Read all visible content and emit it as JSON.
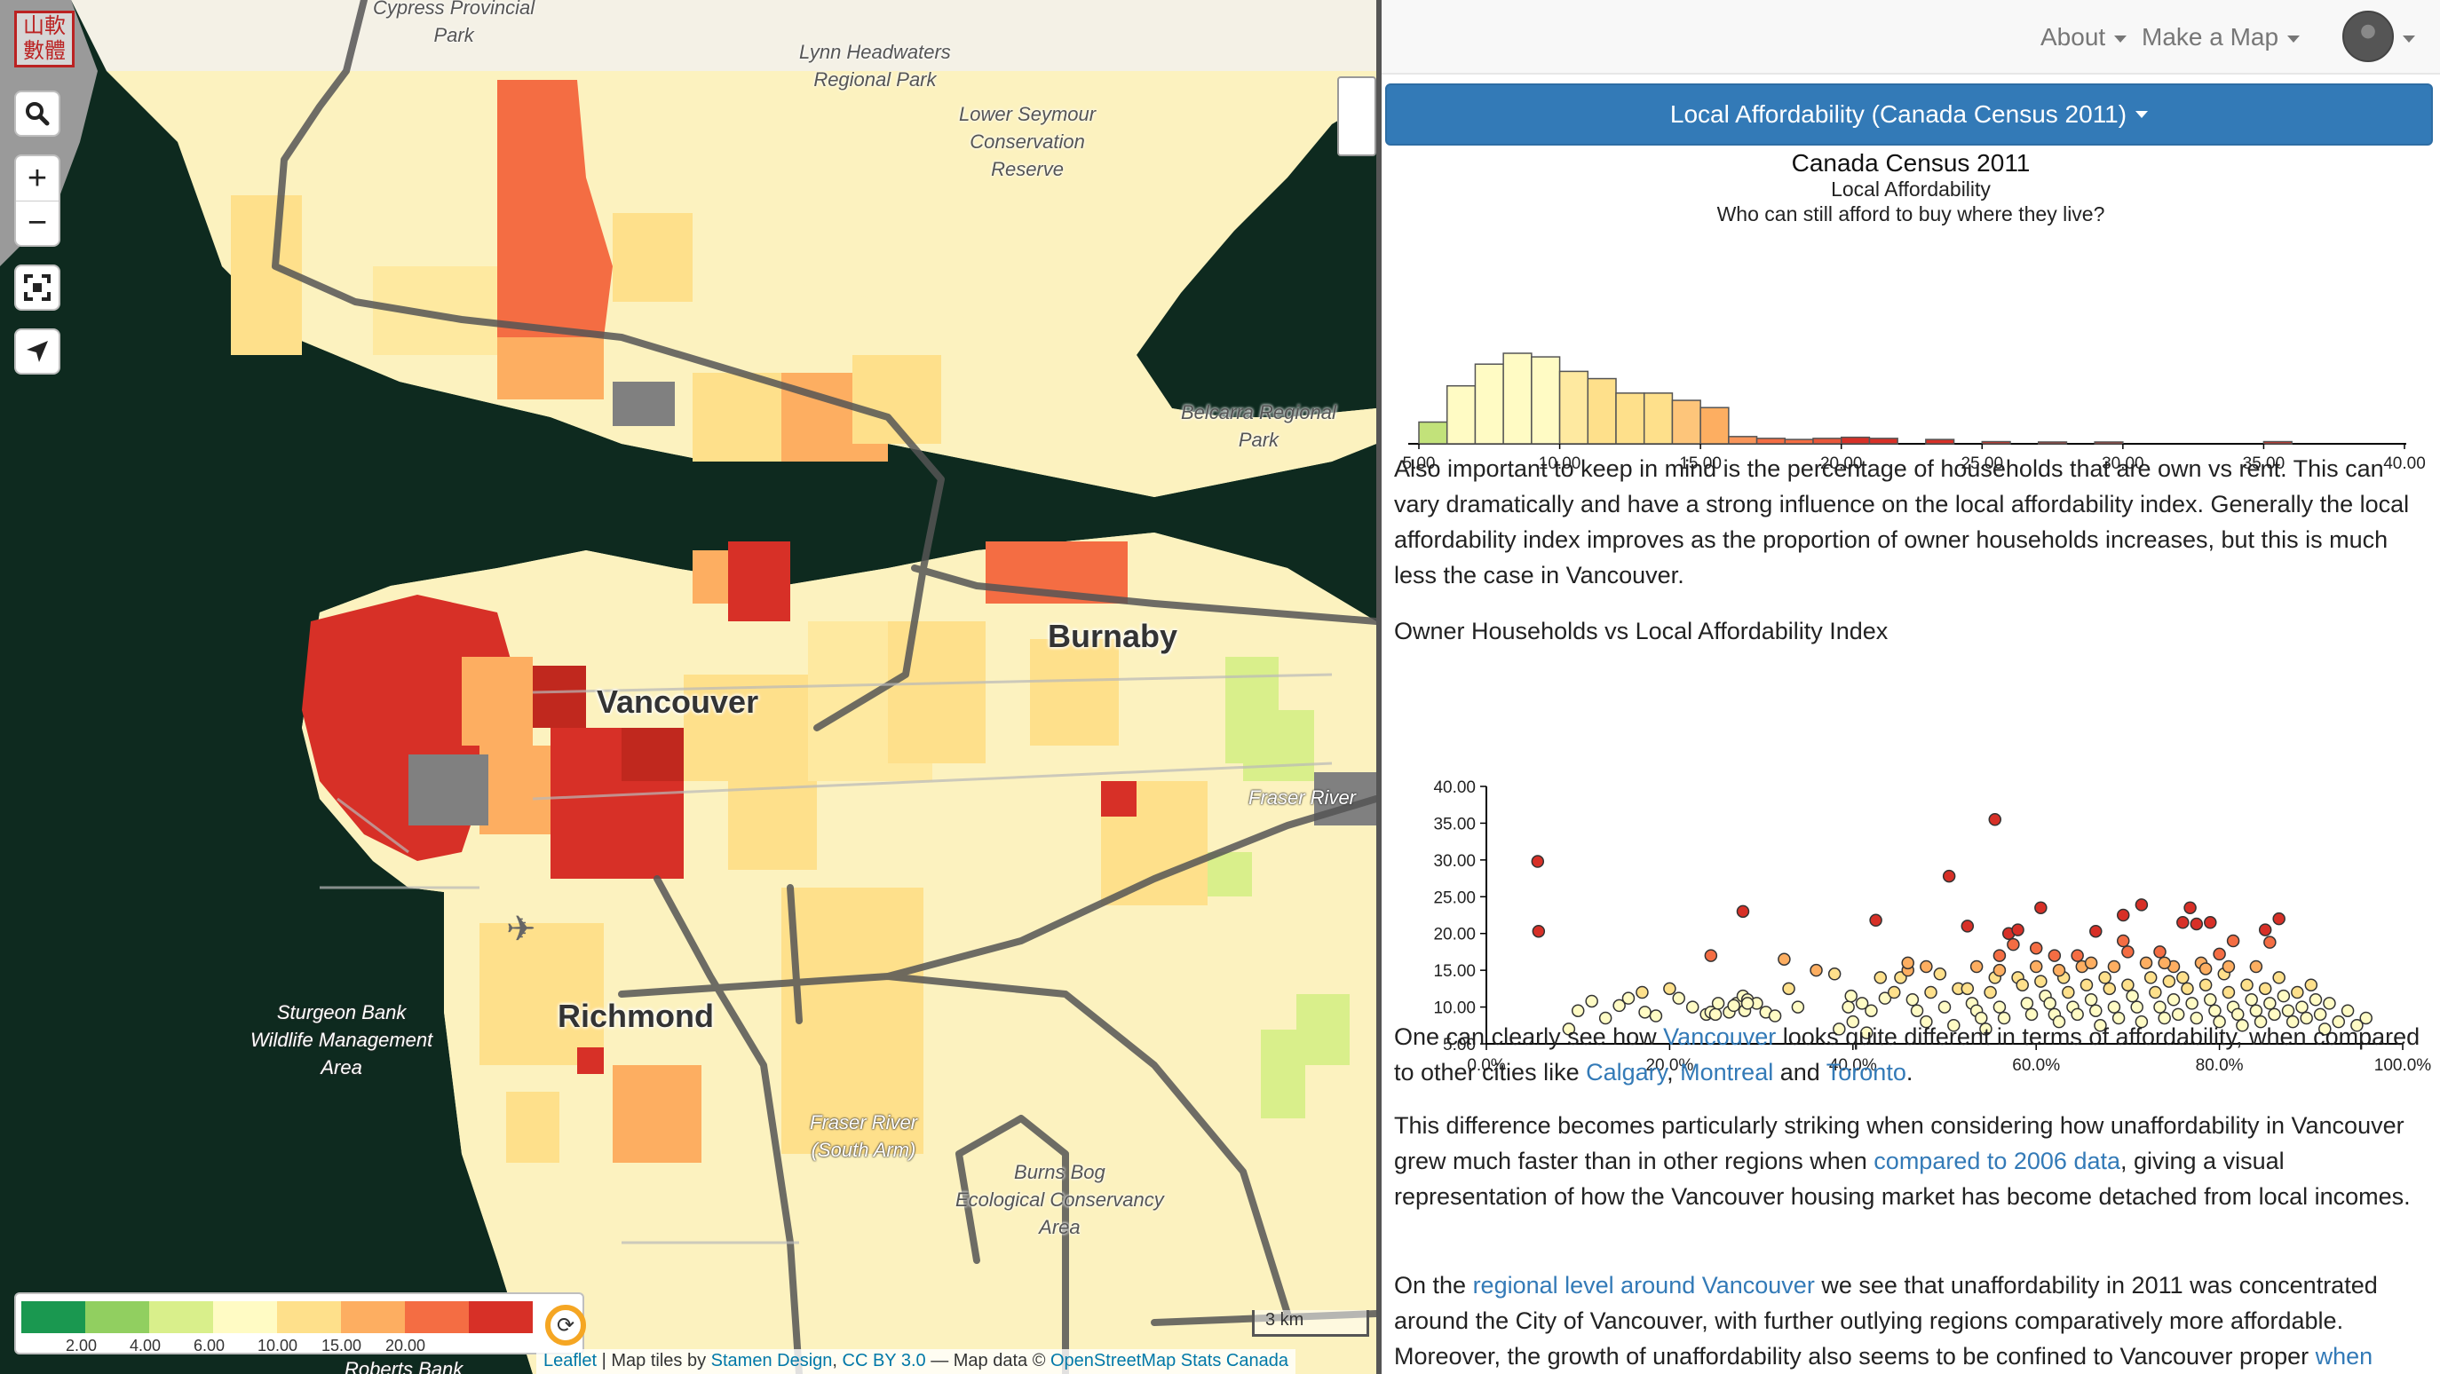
{
  "map": {
    "logo_text": "山軟數體",
    "labels": {
      "cypress": "Cypress Provincial\nPark",
      "lynn": "Lynn Headwaters\nRegional Park",
      "seymour": "Lower Seymour\nConservation\nReserve",
      "belcarra": "Belcarra Regional\nPark",
      "vancouver": "Vancouver",
      "burnaby": "Burnaby",
      "richmond": "Richmond",
      "fraser": "Fraser River",
      "fraser_south": "Fraser River\n(South Arm)",
      "burns_bog": "Burns Bog\nEcological Conservancy\nArea",
      "sturgeon": "Sturgeon Bank\nWildlife Management\nArea",
      "roberts": "Roberts Bank"
    },
    "controls": {
      "search_icon": "search-icon",
      "zoom_in": "+",
      "zoom_out": "−",
      "fullscreen_icon": "fullscreen-icon",
      "locate_icon": "locate-arrow-icon"
    },
    "legend": {
      "colors": [
        "#1a9850",
        "#91cf60",
        "#d9ef8b",
        "#fffbc4",
        "#fee08b",
        "#fdae61",
        "#f46d43",
        "#d73027"
      ],
      "ticks": [
        "2.00",
        "4.00",
        "6.00",
        "10.00",
        "15.00",
        "20.00"
      ],
      "refresh_icon": "refresh-icon"
    },
    "scale_label": "3 km",
    "attribution": {
      "leaflet": "Leaflet",
      "tiles_prefix": " | Map tiles by ",
      "stamen": "Stamen Design",
      "comma": ", ",
      "license": "CC BY 3.0",
      "data_prefix": " — Map data © ",
      "osm": "OpenStreetMap",
      "space": " ",
      "statscan": "Stats Canada"
    }
  },
  "navbar": {
    "about": "About",
    "make_map": "Make a Map",
    "avatar_icon": "user-avatar-icon"
  },
  "panel": {
    "layer_select": "Local Affordability (Canada Census 2011)",
    "chart_title": "Canada Census 2011",
    "chart_subtitle": "Local Affordability",
    "chart_question": "Who can still afford to buy where they live?",
    "para1": "Also important to keep in mind is the percentage of households that are own vs rent. This can vary dramatically and have a strong influence on the local affordability index. Generally the local affordability index improves as the proportion of owner households increases, but this is much less the case in Vancouver.",
    "scatter_title": "Owner Households vs Local Affordability Index",
    "para2": {
      "t1": "One can clearly see how ",
      "l1": "Vancouver",
      "t2": " looks quite different in terms of affordability, when compared to other cities like ",
      "l2": "Calgary",
      "t3": ", ",
      "l3": "Montreal",
      "t4": " and ",
      "l4": "Toronto",
      "t5": "."
    },
    "para3": {
      "t1": "This difference becomes particularly striking when considering how unaffordability in Vancouver grew much faster than in other regions when ",
      "l1": "compared to 2006 data",
      "t2": ", giving a visual representation of how the Vancouver housing market has become detached from local incomes."
    },
    "para4": {
      "t1": "On the ",
      "l1": "regional level around Vancouver",
      "t2": " we see that unaffordability in 2011 was concentrated around the City of Vancouver, with further outlying regions comparatively more affordable. Moreover, the growth of unaffordability also seems to be confined to Vancouver proper ",
      "l2": "when"
    }
  },
  "chart_data": [
    {
      "type": "bar",
      "title": "Canada Census 2011",
      "subtitle": "Local Affordability",
      "xlim": [
        5,
        40
      ],
      "xticks": [
        "5.00",
        "10.00",
        "15.00",
        "20.00",
        "25.00",
        "30.00",
        "35.00",
        "40.00"
      ],
      "bins": [
        {
          "x0": 5,
          "x1": 6,
          "count": 6,
          "color": "#c2e27a"
        },
        {
          "x0": 6,
          "x1": 7,
          "count": 16,
          "color": "#fffbc4"
        },
        {
          "x0": 7,
          "x1": 8,
          "count": 22,
          "color": "#fffbc4"
        },
        {
          "x0": 8,
          "x1": 9,
          "count": 25,
          "color": "#fffbc4"
        },
        {
          "x0": 9,
          "x1": 10,
          "count": 24,
          "color": "#fffbc4"
        },
        {
          "x0": 10,
          "x1": 11,
          "count": 20,
          "color": "#fee9a0"
        },
        {
          "x0": 11,
          "x1": 12,
          "count": 18,
          "color": "#fee08b"
        },
        {
          "x0": 12,
          "x1": 13,
          "count": 14,
          "color": "#fee08b"
        },
        {
          "x0": 13,
          "x1": 14,
          "count": 14,
          "color": "#fee08b"
        },
        {
          "x0": 14,
          "x1": 15,
          "count": 12,
          "color": "#fdc57a"
        },
        {
          "x0": 15,
          "x1": 16,
          "count": 10,
          "color": "#fdae61"
        },
        {
          "x0": 16,
          "x1": 17,
          "count": 2,
          "color": "#f8955a"
        },
        {
          "x0": 17,
          "x1": 18,
          "count": 1.5,
          "color": "#f46d43"
        },
        {
          "x0": 18,
          "x1": 19,
          "count": 1.2,
          "color": "#f46d43"
        },
        {
          "x0": 19,
          "x1": 20,
          "count": 1.5,
          "color": "#e8573a"
        },
        {
          "x0": 20,
          "x1": 21,
          "count": 1.8,
          "color": "#d73027"
        },
        {
          "x0": 21,
          "x1": 22,
          "count": 1.5,
          "color": "#d73027"
        },
        {
          "x0": 23,
          "x1": 24,
          "count": 1.2,
          "color": "#d73027"
        },
        {
          "x0": 25,
          "x1": 26,
          "count": 0.6,
          "color": "#d73027"
        },
        {
          "x0": 27,
          "x1": 28,
          "count": 0.5,
          "color": "#d73027"
        },
        {
          "x0": 29,
          "x1": 30,
          "count": 0.5,
          "color": "#d73027"
        },
        {
          "x0": 35,
          "x1": 36,
          "count": 0.6,
          "color": "#d73027"
        }
      ]
    },
    {
      "type": "scatter",
      "title": "Owner Households vs Local Affordability Index",
      "xlim": [
        0,
        100
      ],
      "ylim": [
        5,
        40
      ],
      "xticks": [
        "0.0%",
        "20.0%",
        "40.0%",
        "60.0%",
        "80.0%",
        "100.0%"
      ],
      "yticks": [
        "5.00",
        "10.00",
        "15.00",
        "20.00",
        "25.00",
        "30.00",
        "35.00",
        "40.00"
      ],
      "points": [
        [
          5.6,
          29.8
        ],
        [
          5.7,
          20.3
        ],
        [
          9,
          7
        ],
        [
          10,
          9.5
        ],
        [
          11.5,
          10.8
        ],
        [
          13,
          8.5
        ],
        [
          14.5,
          10.2
        ],
        [
          15.5,
          11.2
        ],
        [
          17,
          12
        ],
        [
          17.3,
          9.3
        ],
        [
          18.5,
          8.8
        ],
        [
          20,
          12.5
        ],
        [
          21,
          11.2
        ],
        [
          22.5,
          10
        ],
        [
          24,
          9
        ],
        [
          24.5,
          9.3
        ],
        [
          25,
          9
        ],
        [
          25.3,
          10.5
        ],
        [
          26.5,
          9.3
        ],
        [
          27.3,
          10.5
        ],
        [
          28,
          11.5
        ],
        [
          28.2,
          9.5
        ],
        [
          28.5,
          11
        ],
        [
          29.5,
          10.5
        ],
        [
          30.5,
          9.3
        ],
        [
          31.5,
          8.8
        ],
        [
          24.5,
          17
        ],
        [
          27,
          10.2
        ],
        [
          28.5,
          10.5
        ],
        [
          28,
          23
        ],
        [
          32.5,
          16.5
        ],
        [
          33,
          12.5
        ],
        [
          34,
          10
        ],
        [
          36,
          15
        ],
        [
          38,
          14.5
        ],
        [
          39.5,
          10
        ],
        [
          38.5,
          7
        ],
        [
          39.8,
          11.5
        ],
        [
          40,
          8
        ],
        [
          41,
          10.5
        ],
        [
          41.5,
          6.5
        ],
        [
          42,
          9.5
        ],
        [
          43,
          14
        ],
        [
          43.5,
          11.2
        ],
        [
          44.5,
          12
        ],
        [
          45.2,
          14
        ],
        [
          46,
          15
        ],
        [
          46.5,
          11
        ],
        [
          47,
          9.5
        ],
        [
          48,
          8
        ],
        [
          48.5,
          12
        ],
        [
          49.5,
          14.5
        ],
        [
          50,
          10
        ],
        [
          51,
          7.5
        ],
        [
          51.5,
          12.5
        ],
        [
          52.5,
          12.5
        ],
        [
          53,
          10.5
        ],
        [
          53.5,
          9.5
        ],
        [
          54,
          8.5
        ],
        [
          54.5,
          7
        ],
        [
          55,
          12
        ],
        [
          55.5,
          14
        ],
        [
          56,
          10
        ],
        [
          56.5,
          8.5
        ],
        [
          57,
          20
        ],
        [
          57.5,
          18.5
        ],
        [
          58,
          14
        ],
        [
          58.5,
          13
        ],
        [
          59,
          10.5
        ],
        [
          59.5,
          9
        ],
        [
          60,
          15.5
        ],
        [
          60.5,
          13.5
        ],
        [
          61,
          11.5
        ],
        [
          61.5,
          10.5
        ],
        [
          62,
          9
        ],
        [
          62.5,
          8
        ],
        [
          63,
          14
        ],
        [
          63.5,
          12
        ],
        [
          64,
          10
        ],
        [
          64.5,
          9
        ],
        [
          65,
          15.5
        ],
        [
          65.5,
          13
        ],
        [
          66,
          11
        ],
        [
          66.5,
          9.5
        ],
        [
          67,
          7.5
        ],
        [
          67.5,
          14
        ],
        [
          68,
          12.5
        ],
        [
          68.5,
          10
        ],
        [
          69,
          8.5
        ],
        [
          69.5,
          19
        ],
        [
          70,
          13
        ],
        [
          70.5,
          11.5
        ],
        [
          71,
          10
        ],
        [
          71.5,
          8
        ],
        [
          72,
          16
        ],
        [
          72.5,
          14
        ],
        [
          73,
          12
        ],
        [
          73.5,
          10
        ],
        [
          74,
          8.5
        ],
        [
          74.5,
          13.5
        ],
        [
          75,
          11
        ],
        [
          75.5,
          9
        ],
        [
          76,
          14
        ],
        [
          76.5,
          12.5
        ],
        [
          77,
          10.5
        ],
        [
          77.5,
          8.5
        ],
        [
          78,
          16
        ],
        [
          78.5,
          13
        ],
        [
          79,
          11
        ],
        [
          79.5,
          9.5
        ],
        [
          80,
          8
        ],
        [
          80.5,
          14.5
        ],
        [
          81,
          12
        ],
        [
          81.5,
          10
        ],
        [
          82,
          9
        ],
        [
          82.5,
          7.5
        ],
        [
          83,
          13
        ],
        [
          83.5,
          11
        ],
        [
          84,
          9.5
        ],
        [
          84.5,
          8
        ],
        [
          85,
          12.5
        ],
        [
          85.5,
          10.5
        ],
        [
          86,
          9
        ],
        [
          86.5,
          14
        ],
        [
          87,
          11.5
        ],
        [
          87.5,
          9.5
        ],
        [
          88,
          8
        ],
        [
          88.5,
          12
        ],
        [
          89,
          10
        ],
        [
          89.5,
          8.5
        ],
        [
          90,
          13
        ],
        [
          90.5,
          11
        ],
        [
          91,
          9
        ],
        [
          91.5,
          7
        ],
        [
          92,
          10.5
        ],
        [
          93,
          8
        ],
        [
          94,
          9.5
        ],
        [
          95,
          7.5
        ],
        [
          96,
          8.5
        ],
        [
          50.5,
          27.8
        ],
        [
          52.5,
          21
        ],
        [
          55.5,
          35.5
        ],
        [
          58,
          20.5
        ],
        [
          60.5,
          23.5
        ],
        [
          62,
          17
        ],
        [
          64.5,
          17
        ],
        [
          66.5,
          20.3
        ],
        [
          68.5,
          15.5
        ],
        [
          69.5,
          22.5
        ],
        [
          71.5,
          23.9
        ],
        [
          73.5,
          17.5
        ],
        [
          75,
          15.5
        ],
        [
          76,
          21.5
        ],
        [
          76.8,
          23.5
        ],
        [
          77.5,
          21.3
        ],
        [
          79,
          21.5
        ],
        [
          80,
          17.2
        ],
        [
          81,
          15.5
        ],
        [
          81.5,
          19
        ],
        [
          85,
          20.5
        ],
        [
          85.5,
          18.8
        ],
        [
          86.5,
          22
        ],
        [
          42.5,
          21.8
        ],
        [
          46,
          16
        ],
        [
          48,
          15.5
        ],
        [
          53.5,
          15.5
        ],
        [
          56,
          15
        ],
        [
          56,
          17
        ],
        [
          60,
          18
        ],
        [
          62.5,
          15
        ],
        [
          66,
          16
        ],
        [
          70,
          17.5
        ],
        [
          74,
          16
        ],
        [
          78.5,
          15.2
        ],
        [
          84,
          15.5
        ]
      ]
    }
  ]
}
